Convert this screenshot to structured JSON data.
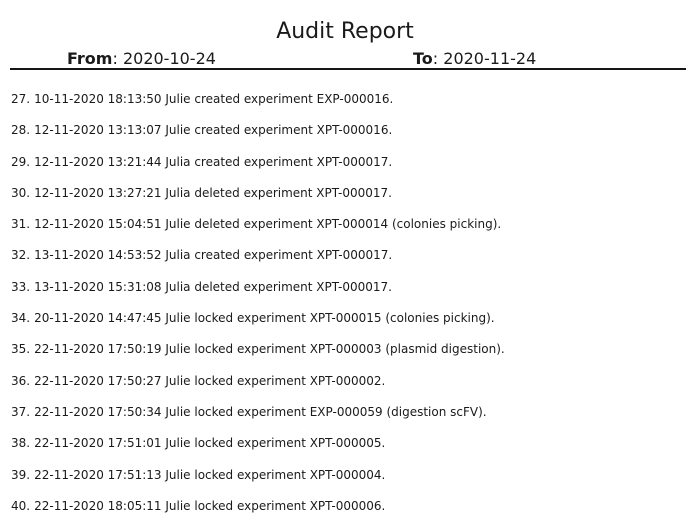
{
  "header": {
    "title": "Audit Report",
    "colon": ": ",
    "from_label": "From",
    "from_value": "2020-10-24",
    "to_label": "To",
    "to_value": "2020-11-24"
  },
  "entries": [
    {
      "n": "27.",
      "text": "10-11-2020 18:13:50 Julie created experiment EXP-000016."
    },
    {
      "n": "28.",
      "text": "12-11-2020 13:13:07 Julie created experiment XPT-000016."
    },
    {
      "n": "29.",
      "text": "12-11-2020 13:21:44 Julia created experiment XPT-000017."
    },
    {
      "n": "30.",
      "text": "12-11-2020 13:27:21 Julia deleted experiment XPT-000017."
    },
    {
      "n": "31.",
      "text": "12-11-2020 15:04:51 Julie deleted experiment XPT-000014 (colonies picking)."
    },
    {
      "n": "32.",
      "text": "13-11-2020 14:53:52 Julia created experiment XPT-000017."
    },
    {
      "n": "33.",
      "text": "13-11-2020 15:31:08 Julia deleted experiment XPT-000017."
    },
    {
      "n": "34.",
      "text": "20-11-2020 14:47:45 Julie locked experiment XPT-000015 (colonies picking)."
    },
    {
      "n": "35.",
      "text": "22-11-2020 17:50:19 Julie locked experiment XPT-000003 (plasmid digestion)."
    },
    {
      "n": "36.",
      "text": "22-11-2020 17:50:27 Julie locked experiment XPT-000002."
    },
    {
      "n": "37.",
      "text": "22-11-2020 17:50:34 Julie locked experiment EXP-000059 (digestion scFV)."
    },
    {
      "n": "38.",
      "text": "22-11-2020 17:51:01 Julie locked experiment XPT-000005."
    },
    {
      "n": "39.",
      "text": "22-11-2020 17:51:13 Julie locked experiment XPT-000004."
    },
    {
      "n": "40.",
      "text": "22-11-2020 18:05:11 Julie locked experiment XPT-000006."
    }
  ]
}
